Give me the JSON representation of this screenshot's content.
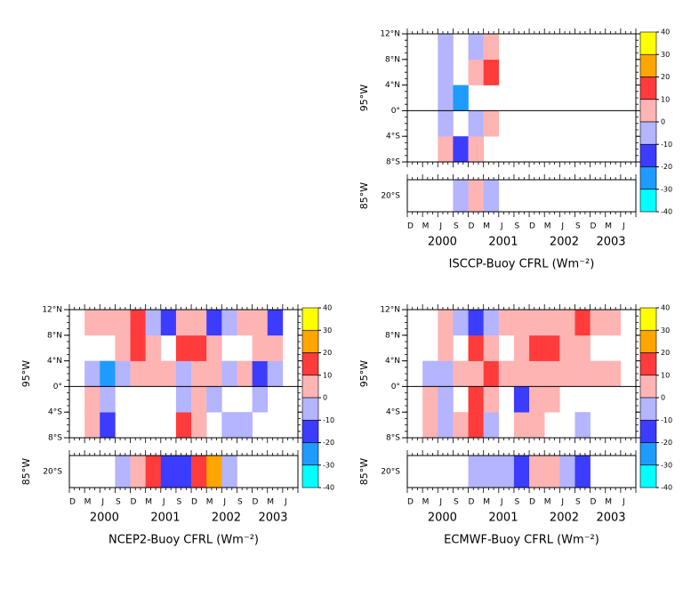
{
  "chart_data": [
    {
      "type": "heatmap",
      "title": "ISCCP-Buoy CFRL (Wm⁻²)",
      "ylabel": "95°W",
      "ylim": [
        -8,
        12
      ],
      "yticks": [
        {
          "value": -8,
          "label": "8°S"
        },
        {
          "value": -4,
          "label": "4°S"
        },
        {
          "value": 0,
          "label": "0°"
        },
        {
          "value": 4,
          "label": "4°N"
        },
        {
          "value": 8,
          "label": "8°N"
        },
        {
          "value": 12,
          "label": "12°N"
        }
      ],
      "y_bins": [
        -8,
        -4,
        0,
        4,
        8,
        12
      ],
      "categories": [
        "D",
        "M",
        "J",
        "S",
        "D",
        "M",
        "J",
        "S",
        "D",
        "M",
        "J",
        "S",
        "D",
        "M",
        "J"
      ],
      "years": [
        "2000",
        "2001",
        "2002",
        "2003"
      ],
      "values": [
        [
          null,
          null,
          5,
          -15,
          5,
          null,
          null,
          null,
          null,
          null,
          null,
          null,
          null,
          null,
          null
        ],
        [
          null,
          null,
          -5,
          null,
          -5,
          5,
          null,
          null,
          null,
          null,
          null,
          null,
          null,
          null,
          null
        ],
        [
          null,
          null,
          -5,
          -25,
          null,
          null,
          null,
          null,
          null,
          null,
          null,
          null,
          null,
          null,
          null
        ],
        [
          null,
          null,
          -5,
          null,
          5,
          15,
          null,
          null,
          null,
          null,
          null,
          null,
          null,
          null,
          null
        ],
        [
          null,
          null,
          -5,
          null,
          -5,
          5,
          null,
          null,
          null,
          null,
          null,
          null,
          null,
          null,
          null
        ]
      ],
      "strip": {
        "label": "85°W",
        "ylabel": "20°S",
        "values": [
          null,
          null,
          null,
          -5,
          5,
          -5,
          null,
          null,
          null,
          null,
          null,
          null,
          null,
          null,
          null
        ]
      },
      "levels": [
        40,
        30,
        20,
        10,
        0,
        -10,
        -20,
        -30,
        -40
      ],
      "colors": [
        "#ffff00",
        "#ffa500",
        "#ff3b3b",
        "#ffb4b4",
        "#b4b4ff",
        "#3c3cff",
        "#1e9bff",
        "#00ffff"
      ]
    },
    {
      "type": "heatmap",
      "title": "NCEP2-Buoy CFRL (Wm⁻²)",
      "ylabel": "95°W",
      "ylim": [
        -8,
        12
      ],
      "yticks": [
        {
          "value": -8,
          "label": "8°S"
        },
        {
          "value": -4,
          "label": "4°S"
        },
        {
          "value": 0,
          "label": "0°"
        },
        {
          "value": 4,
          "label": "4°N"
        },
        {
          "value": 8,
          "label": "8°N"
        },
        {
          "value": 12,
          "label": "12°N"
        }
      ],
      "y_bins": [
        -8,
        -4,
        0,
        4,
        8,
        12
      ],
      "categories": [
        "D",
        "M",
        "J",
        "S",
        "D",
        "M",
        "J",
        "S",
        "D",
        "M",
        "J",
        "S",
        "D",
        "M",
        "J"
      ],
      "years": [
        "2000",
        "2001",
        "2002",
        "2003"
      ],
      "values": [
        [
          null,
          5,
          -15,
          null,
          null,
          null,
          null,
          15,
          5,
          null,
          -5,
          -5,
          null,
          null,
          null
        ],
        [
          null,
          5,
          -5,
          null,
          null,
          null,
          null,
          -5,
          5,
          -5,
          null,
          null,
          -5,
          null,
          null
        ],
        [
          null,
          -5,
          -25,
          -5,
          5,
          5,
          5,
          -5,
          5,
          5,
          -5,
          5,
          -15,
          -5,
          null
        ],
        [
          null,
          null,
          null,
          5,
          15,
          5,
          null,
          15,
          15,
          5,
          null,
          null,
          5,
          5,
          null
        ],
        [
          null,
          5,
          5,
          5,
          15,
          -5,
          -15,
          5,
          5,
          -15,
          -5,
          5,
          5,
          -15,
          null
        ]
      ],
      "strip": {
        "label": "85°W",
        "ylabel": "20°S",
        "values": [
          null,
          null,
          null,
          -10,
          5,
          15,
          -15,
          -15,
          15,
          25,
          -5,
          null,
          null,
          null,
          null
        ]
      },
      "levels": [
        40,
        30,
        20,
        10,
        0,
        -10,
        -20,
        -30,
        -40
      ],
      "colors": [
        "#ffff00",
        "#ffa500",
        "#ff3b3b",
        "#ffb4b4",
        "#b4b4ff",
        "#3c3cff",
        "#1e9bff",
        "#00ffff"
      ]
    },
    {
      "type": "heatmap",
      "title": "ECMWF-Buoy CFRL (Wm⁻²)",
      "ylabel": "95°W",
      "ylim": [
        -8,
        12
      ],
      "yticks": [
        {
          "value": -8,
          "label": "8°S"
        },
        {
          "value": -4,
          "label": "4°S"
        },
        {
          "value": 0,
          "label": "0°"
        },
        {
          "value": 4,
          "label": "4°N"
        },
        {
          "value": 8,
          "label": "8°N"
        },
        {
          "value": 12,
          "label": "12°N"
        }
      ],
      "y_bins": [
        -8,
        -4,
        0,
        4,
        8,
        12
      ],
      "categories": [
        "D",
        "M",
        "J",
        "S",
        "D",
        "M",
        "J",
        "S",
        "D",
        "M",
        "J",
        "S",
        "D",
        "M",
        "J"
      ],
      "years": [
        "2000",
        "2001",
        "2002",
        "2003"
      ],
      "values": [
        [
          null,
          5,
          -5,
          5,
          15,
          -5,
          null,
          5,
          5,
          null,
          null,
          -5,
          null,
          null,
          null
        ],
        [
          null,
          5,
          -5,
          null,
          15,
          5,
          null,
          -15,
          5,
          5,
          null,
          null,
          null,
          null,
          null
        ],
        [
          null,
          -5,
          -5,
          5,
          5,
          15,
          5,
          5,
          5,
          5,
          5,
          5,
          5,
          5,
          null
        ],
        [
          null,
          null,
          5,
          null,
          15,
          5,
          null,
          5,
          15,
          15,
          5,
          5,
          null,
          null,
          null
        ],
        [
          null,
          null,
          5,
          -5,
          -15,
          -5,
          5,
          5,
          5,
          5,
          5,
          15,
          5,
          5,
          null
        ]
      ],
      "strip": {
        "label": "85°W",
        "ylabel": "20°S",
        "values": [
          null,
          null,
          null,
          null,
          -5,
          -5,
          -5,
          -15,
          5,
          5,
          -5,
          -15,
          null,
          null,
          null
        ]
      },
      "levels": [
        40,
        30,
        20,
        10,
        0,
        -10,
        -20,
        -30,
        -40
      ],
      "colors": [
        "#ffff00",
        "#ffa500",
        "#ff3b3b",
        "#ffb4b4",
        "#b4b4ff",
        "#3c3cff",
        "#1e9bff",
        "#00ffff"
      ]
    }
  ]
}
